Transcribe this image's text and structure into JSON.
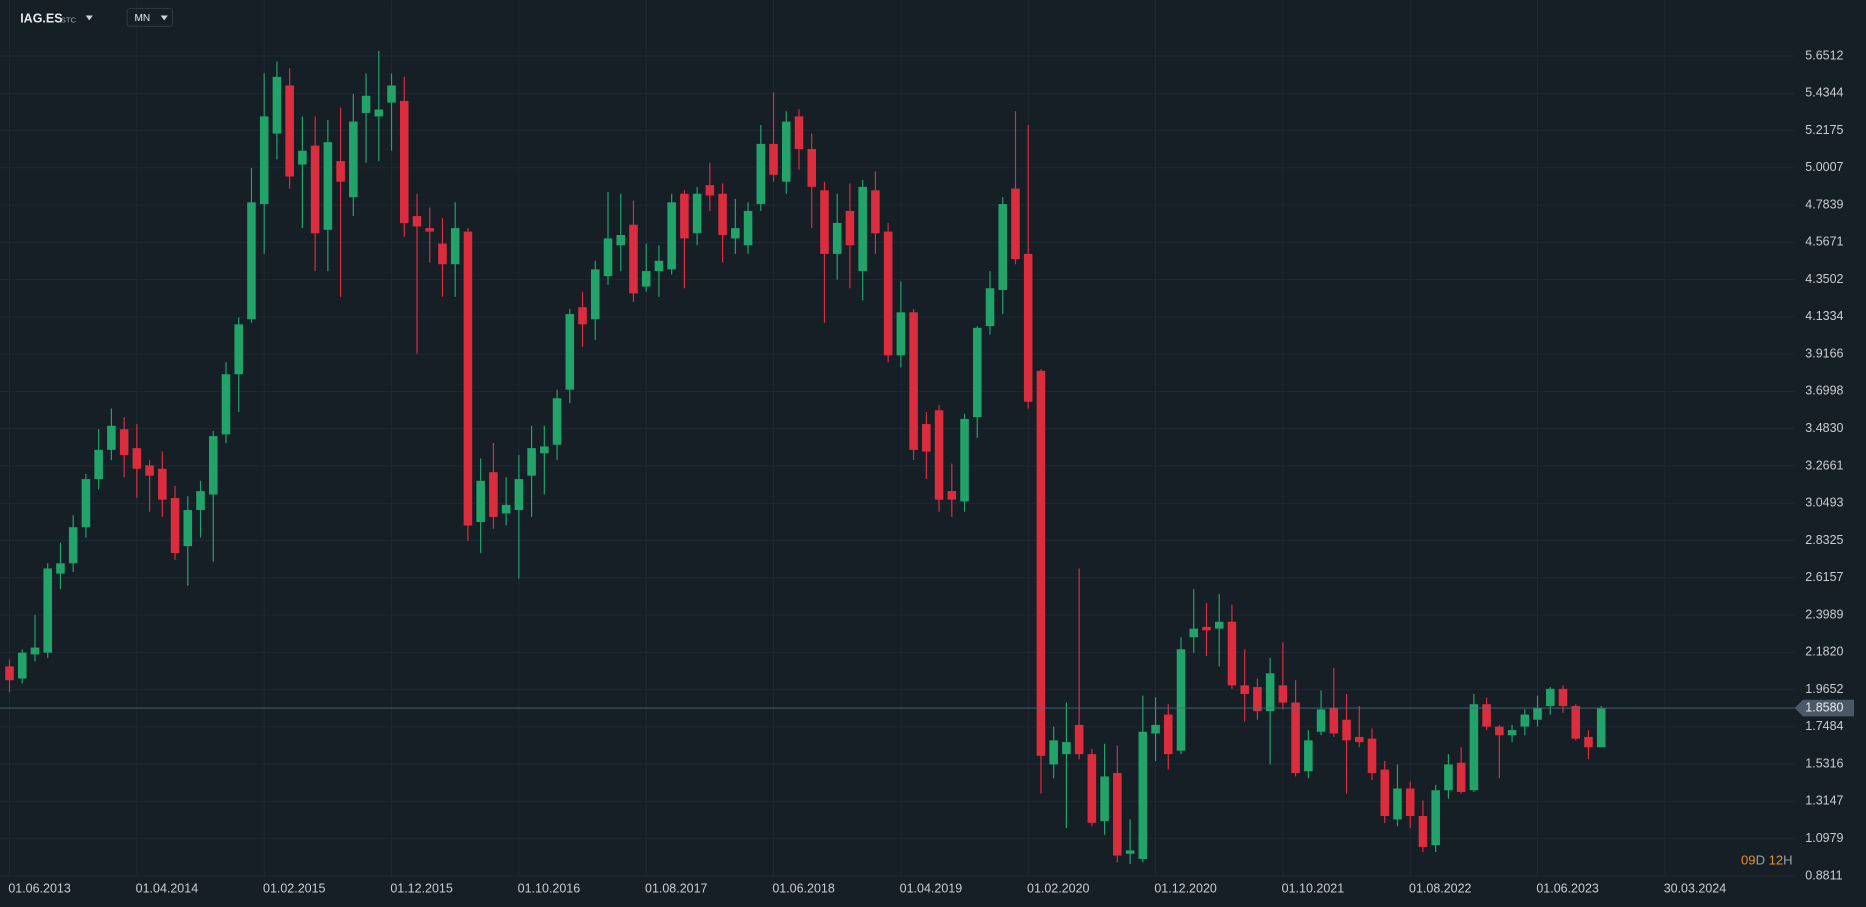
{
  "toolbar": {
    "symbol": "IAG.ES",
    "market": "STC",
    "interval": "MN"
  },
  "countdown": [
    "09",
    "D",
    "12",
    "H"
  ],
  "chart_data": {
    "type": "candlestick",
    "categories": [
      "01.06.2013",
      null,
      null,
      null,
      null,
      null,
      null,
      null,
      null,
      null,
      "01.04.2014",
      null,
      null,
      null,
      null,
      null,
      null,
      null,
      null,
      null,
      "01.02.2015",
      null,
      null,
      null,
      null,
      null,
      null,
      null,
      null,
      null,
      "01.12.2015",
      null,
      null,
      null,
      null,
      null,
      null,
      null,
      null,
      null,
      "01.10.2016",
      null,
      null,
      null,
      null,
      null,
      null,
      null,
      null,
      null,
      "01.08.2017",
      null,
      null,
      null,
      null,
      null,
      null,
      null,
      null,
      null,
      "01.06.2018",
      null,
      null,
      null,
      null,
      null,
      null,
      null,
      null,
      null,
      "01.04.2019",
      null,
      null,
      null,
      null,
      null,
      null,
      null,
      null,
      null,
      "01.02.2020",
      null,
      null,
      null,
      null,
      null,
      null,
      null,
      null,
      null,
      "01.12.2020",
      null,
      null,
      null,
      null,
      null,
      null,
      null,
      null,
      null,
      "01.10.2021",
      null,
      null,
      null,
      null,
      null,
      null,
      null,
      null,
      null,
      "01.08.2022",
      null,
      null,
      null,
      null,
      null,
      null,
      null,
      null,
      null,
      "01.06.2023",
      null,
      null,
      null,
      null,
      null,
      null,
      null,
      null,
      null,
      "30.03.2024"
    ],
    "open": [
      2.1,
      2.03,
      2.17,
      2.18,
      2.64,
      2.7,
      2.91,
      3.19,
      3.36,
      3.48,
      3.37,
      3.27,
      3.25,
      3.08,
      2.8,
      3.01,
      3.1,
      3.45,
      3.8,
      4.12,
      4.79,
      5.2,
      5.48,
      5.02,
      5.13,
      4.64,
      5.04,
      4.83,
      5.32,
      5.3,
      5.38,
      5.39,
      4.72,
      4.65,
      4.56,
      4.44,
      4.63,
      2.94,
      3.23,
      2.99,
      3.01,
      3.21,
      3.34,
      3.39,
      3.71,
      4.19,
      4.12,
      4.37,
      4.55,
      4.67,
      4.31,
      4.4,
      4.41,
      4.85,
      4.62,
      4.9,
      4.85,
      4.59,
      4.55,
      4.79,
      5.14,
      4.92,
      5.3,
      5.11,
      4.87,
      4.5,
      4.75,
      4.4,
      4.87,
      4.63,
      3.91,
      4.16,
      3.51,
      3.59,
      3.12,
      3.06,
      3.55,
      4.08,
      4.29,
      4.88,
      4.5,
      3.82,
      1.53,
      1.59,
      1.76,
      1.59,
      1.2,
      1.48,
      1.01,
      0.98,
      1.71,
      1.82,
      1.61,
      2.27,
      2.33,
      2.32,
      2.36,
      1.99,
      1.98,
      1.84,
      1.99,
      1.89,
      1.49,
      1.72,
      1.86,
      1.79,
      1.69,
      1.68,
      1.5,
      1.21,
      1.39,
      1.23,
      1.06,
      1.38,
      1.54,
      1.38,
      1.88,
      1.75,
      1.7,
      1.75,
      1.79,
      1.87,
      1.97,
      1.87,
      1.69,
      1.63,
      null,
      null,
      null,
      null,
      null
    ],
    "high": [
      2.14,
      2.2,
      2.4,
      2.7,
      2.82,
      2.98,
      3.22,
      3.48,
      3.6,
      3.55,
      3.51,
      3.3,
      3.35,
      3.15,
      3.09,
      3.18,
      3.47,
      3.87,
      4.13,
      5.0,
      5.55,
      5.62,
      5.58,
      5.3,
      5.3,
      5.28,
      5.35,
      5.43,
      5.55,
      5.68,
      5.55,
      5.53,
      4.85,
      4.77,
      4.71,
      4.8,
      4.65,
      3.31,
      3.4,
      3.2,
      3.33,
      3.5,
      3.5,
      3.71,
      4.18,
      4.28,
      4.46,
      4.86,
      4.85,
      4.81,
      4.56,
      4.55,
      4.85,
      4.87,
      4.89,
      5.03,
      4.91,
      4.82,
      4.8,
      5.25,
      5.44,
      5.33,
      5.34,
      5.2,
      4.92,
      4.85,
      4.91,
      4.93,
      4.98,
      4.68,
      4.34,
      4.18,
      3.58,
      3.62,
      3.28,
      3.57,
      4.08,
      4.4,
      4.83,
      5.33,
      5.25,
      3.83,
      1.75,
      1.89,
      2.67,
      1.62,
      1.65,
      1.64,
      1.21,
      1.93,
      1.92,
      1.88,
      2.27,
      2.55,
      2.47,
      2.52,
      2.46,
      2.2,
      2.03,
      2.15,
      2.24,
      2.02,
      1.73,
      1.96,
      2.09,
      1.94,
      1.87,
      1.74,
      1.55,
      1.53,
      1.43,
      1.32,
      1.41,
      1.59,
      1.63,
      1.94,
      1.92,
      1.76,
      1.76,
      1.85,
      1.93,
      1.98,
      1.99,
      1.88,
      1.73,
      1.87,
      null,
      null,
      null,
      null,
      null
    ],
    "low": [
      1.95,
      2.0,
      2.13,
      2.15,
      2.55,
      2.65,
      2.85,
      3.13,
      3.3,
      3.2,
      3.08,
      3.0,
      2.97,
      2.72,
      2.57,
      2.85,
      2.71,
      3.4,
      3.58,
      4.1,
      4.5,
      5.05,
      4.88,
      4.65,
      4.4,
      4.4,
      4.25,
      4.72,
      5.03,
      5.04,
      5.1,
      4.6,
      3.92,
      4.45,
      4.25,
      4.25,
      2.83,
      2.76,
      2.9,
      2.92,
      2.61,
      2.97,
      3.1,
      3.3,
      3.63,
      3.96,
      4.0,
      4.32,
      4.4,
      4.22,
      4.28,
      4.25,
      4.38,
      4.3,
      4.55,
      4.75,
      4.45,
      4.5,
      4.5,
      4.75,
      4.92,
      4.85,
      4.99,
      4.65,
      4.1,
      4.35,
      4.3,
      4.23,
      4.5,
      3.87,
      3.84,
      3.3,
      3.19,
      3.0,
      2.97,
      3.0,
      3.43,
      4.03,
      4.15,
      4.44,
      3.6,
      1.36,
      1.45,
      1.16,
      1.56,
      1.17,
      1.12,
      0.96,
      0.95,
      0.96,
      1.55,
      1.5,
      1.59,
      2.18,
      2.16,
      2.1,
      1.97,
      1.78,
      1.79,
      1.53,
      1.85,
      1.46,
      1.45,
      1.7,
      1.69,
      1.36,
      1.63,
      1.44,
      1.19,
      1.17,
      1.16,
      1.02,
      1.02,
      1.33,
      1.36,
      1.37,
      1.73,
      1.45,
      1.66,
      1.7,
      1.75,
      1.82,
      1.83,
      1.67,
      1.56,
      1.63,
      null,
      null,
      null,
      null,
      null
    ],
    "close": [
      2.02,
      2.18,
      2.21,
      2.67,
      2.7,
      2.91,
      3.19,
      3.36,
      3.5,
      3.33,
      3.25,
      3.21,
      3.07,
      2.76,
      3.01,
      3.12,
      3.44,
      3.8,
      4.09,
      4.8,
      5.3,
      5.53,
      4.95,
      5.1,
      4.62,
      5.15,
      4.92,
      5.27,
      5.42,
      5.34,
      5.48,
      4.68,
      4.66,
      4.63,
      4.44,
      4.65,
      2.92,
      3.18,
      2.97,
      3.04,
      3.19,
      3.37,
      3.38,
      3.66,
      4.15,
      4.09,
      4.41,
      4.59,
      4.61,
      4.27,
      4.4,
      4.46,
      4.8,
      4.59,
      4.85,
      4.84,
      4.61,
      4.65,
      4.75,
      5.14,
      4.96,
      5.27,
      5.11,
      4.89,
      4.5,
      4.68,
      4.55,
      4.89,
      4.62,
      3.91,
      4.16,
      3.36,
      3.35,
      3.07,
      3.07,
      3.54,
      4.07,
      4.3,
      4.79,
      4.47,
      3.64,
      1.58,
      1.67,
      1.66,
      1.59,
      1.19,
      1.46,
      1.0,
      1.03,
      1.72,
      1.76,
      1.59,
      2.2,
      2.32,
      2.31,
      2.36,
      1.99,
      1.94,
      1.84,
      2.06,
      1.89,
      1.48,
      1.67,
      1.85,
      1.71,
      1.67,
      1.66,
      1.48,
      1.23,
      1.39,
      1.23,
      1.05,
      1.38,
      1.53,
      1.37,
      1.88,
      1.75,
      1.7,
      1.73,
      1.82,
      1.86,
      1.97,
      1.87,
      1.68,
      1.63,
      1.858,
      null,
      null,
      null,
      null,
      null
    ],
    "up_color": "#22a36a",
    "down_color": "#dc2d3f",
    "ylim": [
      0.8811,
      5.8
    ],
    "yticks": [
      5.6512,
      5.4344,
      5.2175,
      5.0007,
      4.7839,
      4.5671,
      4.3502,
      4.1334,
      3.9166,
      3.6998,
      {
        "value": 3.483,
        "label": "3.4830"
      },
      3.2661,
      3.0493,
      2.8325,
      2.6157,
      2.3989,
      {
        "value": 2.182,
        "label": "2.1820"
      },
      1.9652,
      1.7484,
      1.5316,
      1.3147,
      1.0979,
      0.8811
    ],
    "current_price": {
      "value": 1.858,
      "label": "1.8580"
    },
    "grid": true
  }
}
